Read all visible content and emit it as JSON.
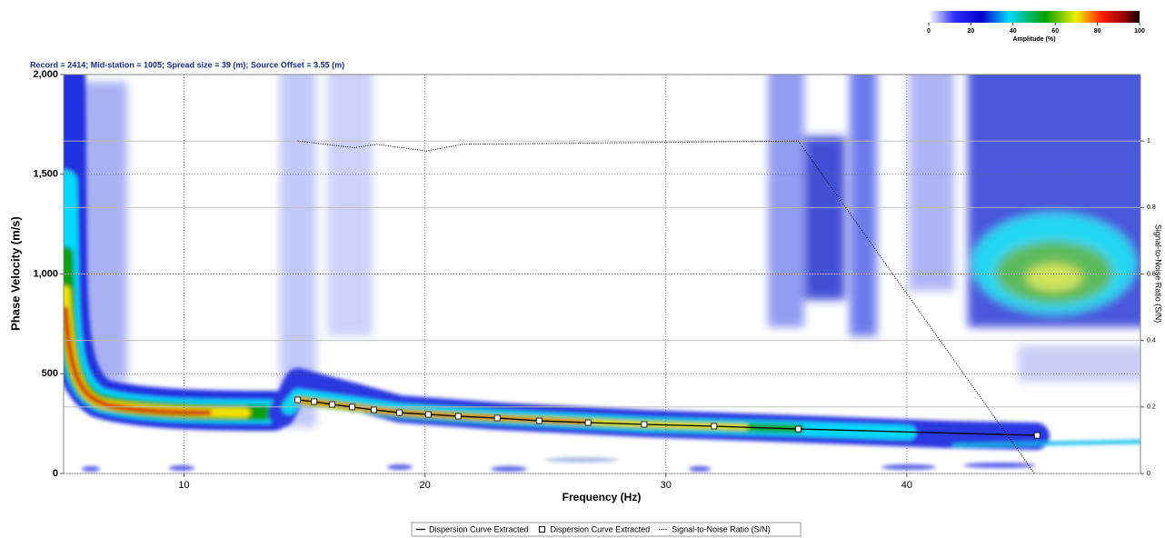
{
  "chart_data": {
    "type": "dispersion",
    "title": "Record = 2414; Mid-station = 1005; Spread size = 39 (m); Source Offset = 3.55 (m)",
    "xlabel": "Frequency (Hz)",
    "ylabel": "Phase Velocity (m/s)",
    "y2label": "Signal-to-Noise Ratio (S/N)",
    "xlim": [
      5,
      49.7
    ],
    "xticks": [
      10,
      20,
      30,
      40
    ],
    "ylim": [
      0,
      2000
    ],
    "yticks": [
      0,
      500,
      {
        "value": 1000,
        "label": "1,000"
      },
      {
        "value": 1500,
        "label": "1,500"
      },
      {
        "value": 2000,
        "label": "2,000"
      }
    ],
    "y2lim": [
      0,
      1.2
    ],
    "y2ticks": [
      0,
      0.2,
      0.4,
      0.6,
      0.8,
      1
    ],
    "grid": true,
    "colorbar": {
      "title": "Amplitude (%)",
      "lim": [
        0,
        100
      ],
      "ticks": [
        0,
        20,
        40,
        60,
        80,
        100
      ]
    },
    "series": [
      {
        "name": "Dispersion Curve Extracted",
        "style": "line",
        "color": "#000000",
        "x": [
          14.72,
          15.4,
          16.15,
          16.98,
          17.88,
          18.94,
          20.14,
          21.38,
          23.0,
          24.74,
          26.77,
          29.1,
          32.0,
          35.5,
          45.41
        ],
        "values": [
          369,
          360,
          346,
          333,
          319,
          305,
          296,
          287,
          278,
          264,
          255,
          246,
          237,
          223,
          191
        ]
      },
      {
        "name": "Dispersion Curve Extracted",
        "style": "markers",
        "color": "#000000",
        "x": [
          14.72,
          15.4,
          16.15,
          16.98,
          17.88,
          18.94,
          20.14,
          21.38,
          23.0,
          24.74,
          26.77,
          29.1,
          32.0,
          35.5,
          45.41
        ],
        "values": [
          369,
          360,
          346,
          333,
          319,
          305,
          296,
          287,
          278,
          264,
          255,
          246,
          237,
          223,
          191
        ]
      },
      {
        "name": "Signal-to-Noise Ratio (S/N)",
        "style": "dotted",
        "color": "#000000",
        "axis": "y2",
        "x": [
          14.72,
          17.05,
          18.0,
          20.07,
          21.57,
          35.5,
          45.3
        ],
        "values": [
          1,
          0.98,
          0.99,
          0.97,
          0.99,
          1,
          0
        ]
      }
    ]
  }
}
